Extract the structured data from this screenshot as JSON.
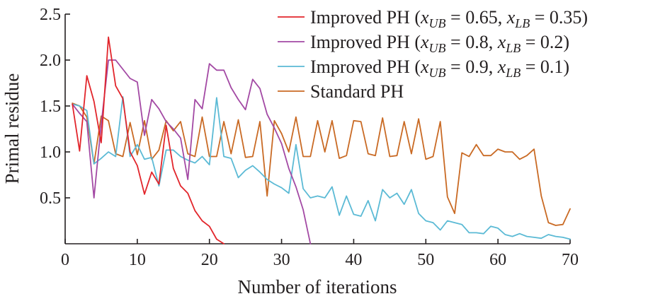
{
  "chart_data": {
    "type": "line",
    "title": "",
    "xlabel": "Number of iterations",
    "ylabel": "Primal residue",
    "xlim": [
      0,
      70
    ],
    "ylim": [
      0,
      2.5
    ],
    "xticks": [
      0,
      10,
      20,
      30,
      40,
      50,
      60,
      70
    ],
    "yticks": [
      0.5,
      1.0,
      1.5,
      2.0,
      2.5
    ],
    "xtick_labels": [
      "0",
      "10",
      "20",
      "30",
      "40",
      "50",
      "60",
      "70"
    ],
    "ytick_labels": [
      "0.5",
      "1.0",
      "1.5",
      "2.0",
      "2.5"
    ],
    "grid": false,
    "legend_position": "top-right",
    "series": [
      {
        "name": "Improved PH (x_UB = 0.65, x_LB = 0.35)",
        "legend": {
          "prefix": "Improved PH (",
          "var1": "x",
          "sub1": "UB",
          "eq1": " = 0.65, ",
          "var2": "x",
          "sub2": "LB",
          "eq2": " = 0.35)"
        },
        "color": "#e2252b",
        "x": [
          1,
          2,
          3,
          4,
          5,
          6,
          7,
          8,
          9,
          10,
          11,
          12,
          13,
          14,
          15,
          16,
          17,
          18,
          19,
          20,
          21,
          22
        ],
        "y": [
          1.52,
          1.01,
          1.83,
          1.55,
          1.1,
          2.25,
          1.72,
          1.58,
          1.0,
          0.85,
          0.54,
          0.78,
          0.65,
          1.29,
          0.82,
          0.63,
          0.55,
          0.36,
          0.25,
          0.19,
          0.05,
          0.0
        ]
      },
      {
        "name": "Improved PH (x_UB = 0.8, x_LB = 0.2)",
        "legend": {
          "prefix": "Improved PH (",
          "var1": "x",
          "sub1": "UB",
          "eq1": " = 0.8, ",
          "var2": "x",
          "sub2": "LB",
          "eq2": " = 0.2)"
        },
        "color": "#a349a4",
        "x": [
          1,
          2,
          3,
          4,
          5,
          6,
          7,
          8,
          9,
          10,
          11,
          12,
          13,
          14,
          15,
          16,
          17,
          18,
          19,
          20,
          21,
          22,
          23,
          24,
          25,
          26,
          27,
          28,
          29,
          30,
          31,
          32,
          33,
          34
        ],
        "y": [
          1.52,
          1.42,
          1.33,
          0.5,
          1.3,
          2.0,
          2.0,
          1.9,
          1.8,
          1.76,
          1.18,
          1.57,
          1.47,
          1.33,
          1.25,
          1.15,
          0.7,
          1.57,
          1.47,
          1.96,
          1.89,
          1.89,
          1.7,
          1.57,
          1.46,
          1.79,
          1.69,
          1.41,
          1.26,
          1.09,
          0.82,
          0.62,
          0.37,
          0.0
        ]
      },
      {
        "name": "Improved PH (x_UB = 0.9, x_LB = 0.1)",
        "legend": {
          "prefix": "Improved PH (",
          "var1": "x",
          "sub1": "UB",
          "eq1": " = 0.9, ",
          "var2": "x",
          "sub2": "LB",
          "eq2": " = 0.1)"
        },
        "color": "#5bbad5",
        "x": [
          1,
          2,
          3,
          4,
          5,
          6,
          7,
          8,
          9,
          10,
          11,
          12,
          13,
          14,
          15,
          16,
          17,
          18,
          19,
          20,
          21,
          22,
          23,
          24,
          25,
          26,
          27,
          28,
          29,
          30,
          31,
          32,
          33,
          34,
          35,
          36,
          37,
          38,
          39,
          40,
          41,
          42,
          43,
          44,
          45,
          46,
          47,
          48,
          49,
          50,
          51,
          52,
          53,
          54,
          55,
          56,
          57,
          58,
          59,
          60,
          61,
          62,
          63,
          64,
          65,
          66,
          67,
          68,
          69,
          70
        ],
        "y": [
          1.52,
          1.5,
          1.45,
          0.87,
          0.93,
          1.0,
          0.95,
          1.6,
          0.95,
          1.08,
          0.92,
          0.94,
          0.63,
          1.02,
          1.02,
          0.95,
          0.91,
          0.88,
          0.95,
          0.86,
          1.59,
          0.95,
          0.93,
          0.72,
          0.8,
          0.85,
          0.78,
          0.7,
          0.65,
          0.61,
          0.55,
          1.08,
          0.6,
          0.5,
          0.52,
          0.5,
          0.62,
          0.31,
          0.52,
          0.32,
          0.3,
          0.47,
          0.25,
          0.59,
          0.5,
          0.55,
          0.43,
          0.59,
          0.33,
          0.25,
          0.23,
          0.15,
          0.25,
          0.23,
          0.21,
          0.12,
          0.12,
          0.11,
          0.19,
          0.17,
          0.1,
          0.08,
          0.11,
          0.08,
          0.07,
          0.06,
          0.1,
          0.08,
          0.07,
          0.05
        ]
      },
      {
        "name": "Standard PH",
        "legend": {
          "prefix": "Standard PH",
          "var1": "",
          "sub1": "",
          "eq1": "",
          "var2": "",
          "sub2": "",
          "eq2": ""
        },
        "color": "#c96a24",
        "x": [
          1,
          2,
          3,
          4,
          5,
          6,
          7,
          8,
          9,
          10,
          11,
          12,
          13,
          14,
          15,
          16,
          17,
          18,
          19,
          20,
          21,
          22,
          23,
          24,
          25,
          26,
          27,
          28,
          29,
          30,
          31,
          32,
          33,
          34,
          35,
          36,
          37,
          38,
          39,
          40,
          41,
          42,
          43,
          44,
          45,
          46,
          47,
          48,
          49,
          50,
          51,
          52,
          53,
          54,
          55,
          56,
          57,
          58,
          59,
          60,
          61,
          62,
          63,
          64,
          65,
          66,
          67,
          68,
          69,
          70
        ],
        "y": [
          1.53,
          1.5,
          1.38,
          0.87,
          1.39,
          1.34,
          0.98,
          0.95,
          1.32,
          0.97,
          1.34,
          0.92,
          1.02,
          1.34,
          1.23,
          1.33,
          0.98,
          0.95,
          1.38,
          0.95,
          0.95,
          1.33,
          0.98,
          1.35,
          0.94,
          0.95,
          1.33,
          0.52,
          1.34,
          1.2,
          1.0,
          1.38,
          0.95,
          0.95,
          1.34,
          1.0,
          1.34,
          0.93,
          0.96,
          1.34,
          1.33,
          0.98,
          0.96,
          1.37,
          0.95,
          0.96,
          1.33,
          0.98,
          1.36,
          0.92,
          0.95,
          1.33,
          0.51,
          0.33,
          0.99,
          0.95,
          1.08,
          0.96,
          0.96,
          1.03,
          1.0,
          1.0,
          0.92,
          0.96,
          1.03,
          0.52,
          0.23,
          0.2,
          0.21,
          0.38
        ]
      }
    ]
  }
}
